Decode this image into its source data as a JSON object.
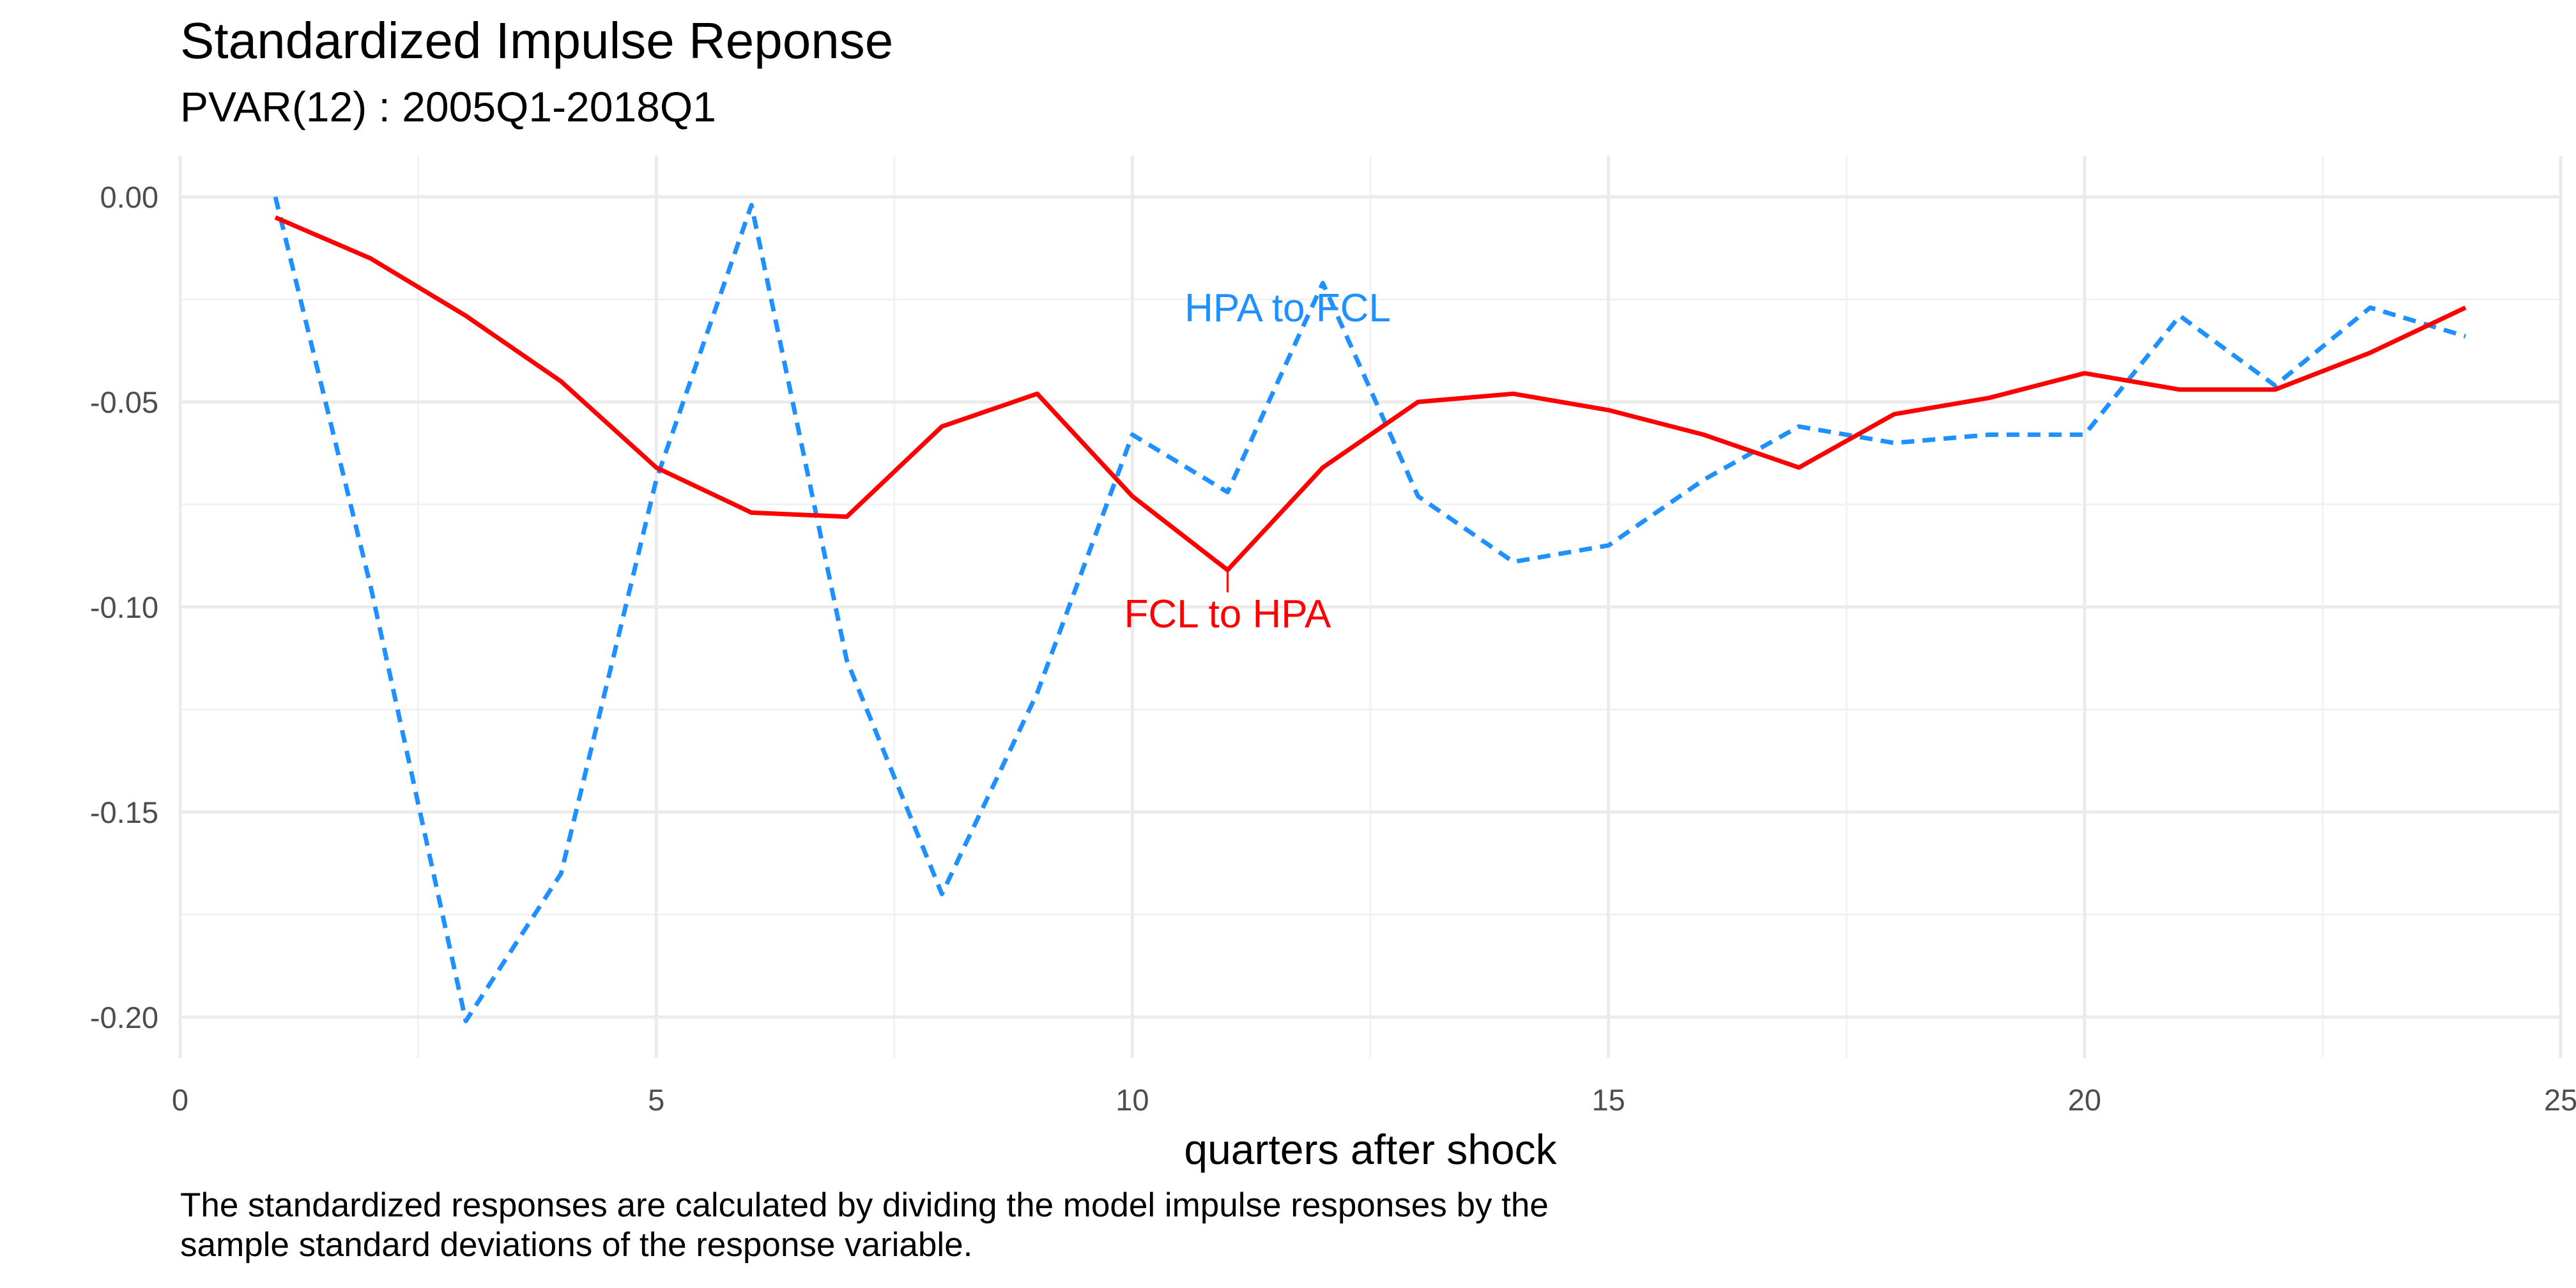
{
  "chart_data": {
    "type": "line",
    "title": "Standardized Impulse Reponse",
    "subtitle": "PVAR(12) : 2005Q1-2018Q1",
    "xlabel": "quarters after shock",
    "ylabel": "",
    "caption_lines": [
      "The standardized responses are calculated by dividing the model impulse responses by the",
      "sample standard deviations of the response variable."
    ],
    "xlim": [
      0,
      25
    ],
    "ylim": [
      -0.21,
      0.01
    ],
    "x_ticks": [
      0,
      5,
      10,
      15,
      20,
      25
    ],
    "y_ticks": [
      0.0,
      -0.05,
      -0.1,
      -0.15,
      -0.2
    ],
    "x_tick_labels": [
      "0",
      "5",
      "10",
      "15",
      "20",
      "25"
    ],
    "y_tick_labels": [
      "0.00",
      "-0.05",
      "-0.10",
      "-0.15",
      "-0.20"
    ],
    "grid": true,
    "legend": "none (direct labels on series)",
    "x": [
      1,
      2,
      3,
      4,
      5,
      6,
      7,
      8,
      9,
      10,
      11,
      12,
      13,
      14,
      15,
      16,
      17,
      18,
      19,
      20,
      21,
      22,
      23,
      24
    ],
    "series": [
      {
        "name": "FCL to HPA",
        "color": "#ff0000",
        "line_style": "solid",
        "values": [
          -0.005,
          -0.015,
          -0.029,
          -0.045,
          -0.066,
          -0.077,
          -0.078,
          -0.056,
          -0.048,
          -0.073,
          -0.091,
          -0.066,
          -0.05,
          -0.048,
          -0.052,
          -0.058,
          -0.066,
          -0.053,
          -0.049,
          -0.043,
          -0.047,
          -0.047,
          -0.038,
          -0.027
        ],
        "label_at_x": 11
      },
      {
        "name": "HPA to FCL",
        "color": "#1e90ff",
        "line_style": "dashed",
        "values": [
          0.0,
          -0.095,
          -0.201,
          -0.165,
          -0.069,
          -0.002,
          -0.113,
          -0.17,
          -0.121,
          -0.058,
          -0.072,
          -0.021,
          -0.073,
          -0.089,
          -0.085,
          -0.069,
          -0.056,
          -0.06,
          -0.058,
          -0.058,
          -0.029,
          -0.046,
          -0.027,
          -0.034
        ],
        "label_at_x": 12
      }
    ]
  }
}
